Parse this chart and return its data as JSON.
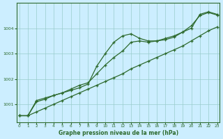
{
  "x": [
    0,
    1,
    2,
    3,
    4,
    5,
    6,
    7,
    8,
    9,
    10,
    11,
    12,
    13,
    14,
    15,
    16,
    17,
    18,
    19,
    20,
    21,
    22,
    23
  ],
  "series_linear": [
    1000.55,
    1000.55,
    1000.7,
    1000.85,
    1001.0,
    1001.15,
    1001.3,
    1001.45,
    1001.6,
    1001.75,
    1001.9,
    1002.05,
    1002.2,
    1002.4,
    1002.55,
    1002.7,
    1002.85,
    1003.0,
    1003.15,
    1003.3,
    1003.5,
    1003.7,
    1003.9,
    1004.05
  ],
  "series_peak": [
    1000.55,
    1000.55,
    1001.1,
    1001.2,
    1001.35,
    1001.45,
    1001.55,
    1001.65,
    1001.8,
    1002.5,
    1003.0,
    1003.45,
    1003.7,
    1003.78,
    1003.6,
    1003.5,
    1003.5,
    1003.55,
    1003.65,
    1003.85,
    1004.0,
    1004.55,
    1004.65,
    1004.55
  ],
  "series_mid": [
    1000.55,
    1000.55,
    1001.15,
    1001.25,
    1001.35,
    1001.45,
    1001.6,
    1001.75,
    1001.85,
    1002.2,
    1002.55,
    1002.85,
    1003.1,
    1003.45,
    1003.5,
    1003.45,
    1003.5,
    1003.6,
    1003.7,
    1003.85,
    1004.1,
    1004.5,
    1004.62,
    1004.52
  ],
  "line_color": "#2d6a2d",
  "bg_color": "#cceeff",
  "plot_bg": "#cceeff",
  "grid_color": "#99cccc",
  "title": "Graphe pression niveau de la mer (hPa)",
  "ylim_min": 1000.3,
  "ylim_max": 1005.0,
  "yticks": [
    1001,
    1002,
    1003,
    1004
  ],
  "xticks": [
    0,
    1,
    2,
    3,
    4,
    5,
    6,
    7,
    8,
    9,
    10,
    11,
    12,
    13,
    14,
    15,
    16,
    17,
    18,
    19,
    20,
    21,
    22,
    23
  ]
}
